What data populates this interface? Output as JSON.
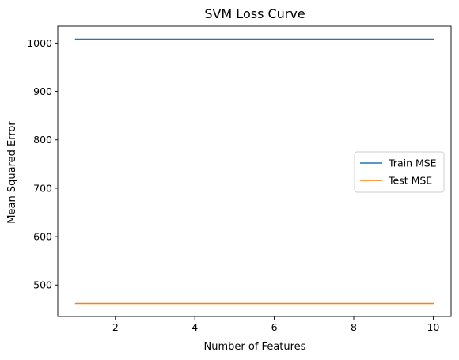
{
  "chart_data": {
    "type": "line",
    "title": "SVM Loss Curve",
    "xlabel": "Number of Features",
    "ylabel": "Mean Squared Error",
    "xlim": [
      0.55,
      10.45
    ],
    "ylim": [
      435,
      1035
    ],
    "xticks": [
      2,
      4,
      6,
      8,
      10
    ],
    "yticks": [
      500,
      600,
      700,
      800,
      900,
      1000
    ],
    "grid": false,
    "legend": {
      "position": "center-right"
    },
    "x": [
      1,
      2,
      3,
      4,
      5,
      6,
      7,
      8,
      9,
      10
    ],
    "series": [
      {
        "name": "Train MSE",
        "color": "#1f77b4",
        "values": [
          1008,
          1008,
          1008,
          1008,
          1008,
          1008,
          1008,
          1008,
          1008,
          1008
        ]
      },
      {
        "name": "Test MSE",
        "color": "#ff7f0e",
        "values": [
          462,
          462,
          462,
          462,
          462,
          462,
          462,
          462,
          462,
          462
        ]
      }
    ]
  }
}
